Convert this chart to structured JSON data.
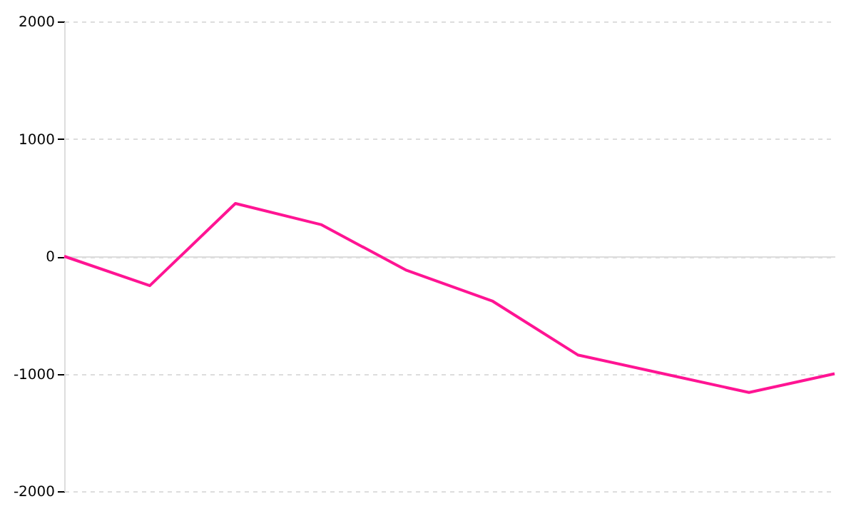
{
  "chart_data": {
    "type": "line",
    "categories": [
      null,
      null,
      null,
      null,
      null,
      null,
      null,
      null,
      null,
      null
    ],
    "series": [
      {
        "color": "#ff1493",
        "values": [
          0,
          -250,
          450,
          270,
          -120,
          -380,
          -840,
          -1000,
          -1160,
          -1000
        ]
      }
    ],
    "ylim": [
      -2000,
      2000
    ],
    "yticks": [
      -2000,
      -1000,
      0,
      1000,
      2000
    ],
    "tick_labels": "y",
    "grid": "y",
    "marker": "none",
    "line_style": "solid"
  }
}
